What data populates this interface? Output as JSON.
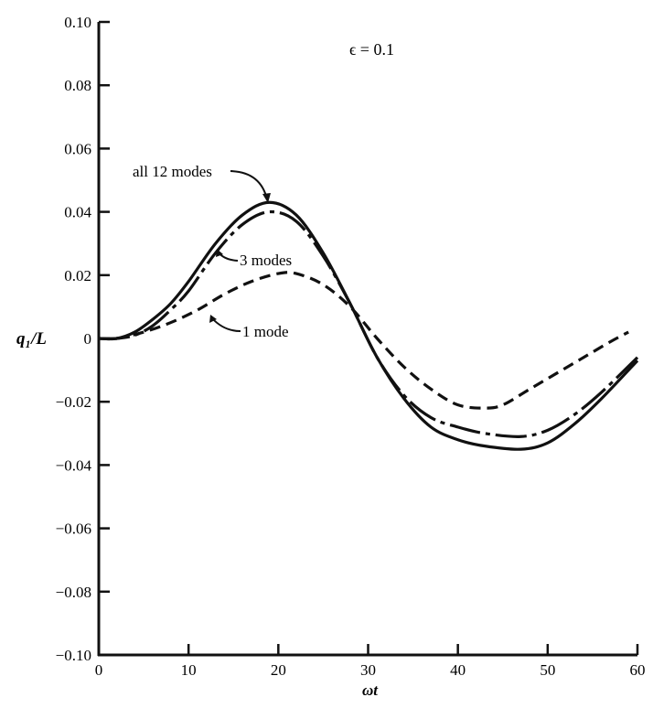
{
  "chart_data": {
    "type": "line",
    "title": "",
    "annotation": "ϵ = 0.1",
    "xlabel": "ωt",
    "ylabel": "q₁/L",
    "xlim": [
      0,
      60
    ],
    "ylim": [
      -0.1,
      0.1
    ],
    "grid": false,
    "x_ticks": [
      "0",
      "10",
      "20",
      "30",
      "40",
      "50",
      "60"
    ],
    "x_tick_values": [
      0,
      10,
      20,
      30,
      40,
      50,
      60
    ],
    "y_ticks": [
      "0.10",
      "0.08",
      "0.06",
      "0.04",
      "0.02",
      "0",
      "−0.02",
      "−0.04",
      "−0.06",
      "−0.08",
      "−0.10"
    ],
    "y_tick_values": [
      0.1,
      0.08,
      0.06,
      0.04,
      0.02,
      0,
      -0.02,
      -0.04,
      -0.06,
      -0.08,
      -0.1
    ],
    "series": [
      {
        "name": "all 12 modes",
        "style": "solid",
        "x": [
          0,
          2,
          4,
          6,
          8,
          10,
          13,
          16,
          19,
          22,
          25,
          28,
          31,
          34,
          37,
          40,
          43,
          47,
          50,
          53,
          56,
          60
        ],
        "y": [
          0,
          0,
          0.002,
          0.006,
          0.011,
          0.018,
          0.03,
          0.039,
          0.043,
          0.039,
          0.027,
          0.011,
          -0.006,
          -0.019,
          -0.028,
          -0.032,
          -0.034,
          -0.035,
          -0.033,
          -0.027,
          -0.019,
          -0.007
        ]
      },
      {
        "name": "3 modes",
        "style": "dash-dot",
        "x": [
          0,
          2,
          4,
          6,
          8,
          10,
          13,
          16,
          19,
          22,
          25,
          28,
          31,
          34,
          37,
          40,
          43,
          47,
          50,
          53,
          56,
          60
        ],
        "y": [
          0,
          0,
          0.001,
          0.004,
          0.009,
          0.015,
          0.027,
          0.036,
          0.04,
          0.037,
          0.026,
          0.011,
          -0.006,
          -0.018,
          -0.025,
          -0.028,
          -0.03,
          -0.031,
          -0.029,
          -0.024,
          -0.017,
          -0.006
        ]
      },
      {
        "name": "1 mode",
        "style": "dashed",
        "x": [
          0,
          2,
          5,
          8,
          11,
          14,
          17,
          20,
          22,
          25,
          28,
          31,
          34,
          37,
          40,
          43,
          45,
          48,
          51,
          54,
          57,
          59
        ],
        "y": [
          0,
          0,
          0.002,
          0.005,
          0.009,
          0.014,
          0.018,
          0.0205,
          0.0205,
          0.017,
          0.01,
          0.0,
          -0.009,
          -0.016,
          -0.021,
          -0.022,
          -0.021,
          -0.016,
          -0.011,
          -0.006,
          -0.001,
          0.002
        ]
      }
    ]
  }
}
